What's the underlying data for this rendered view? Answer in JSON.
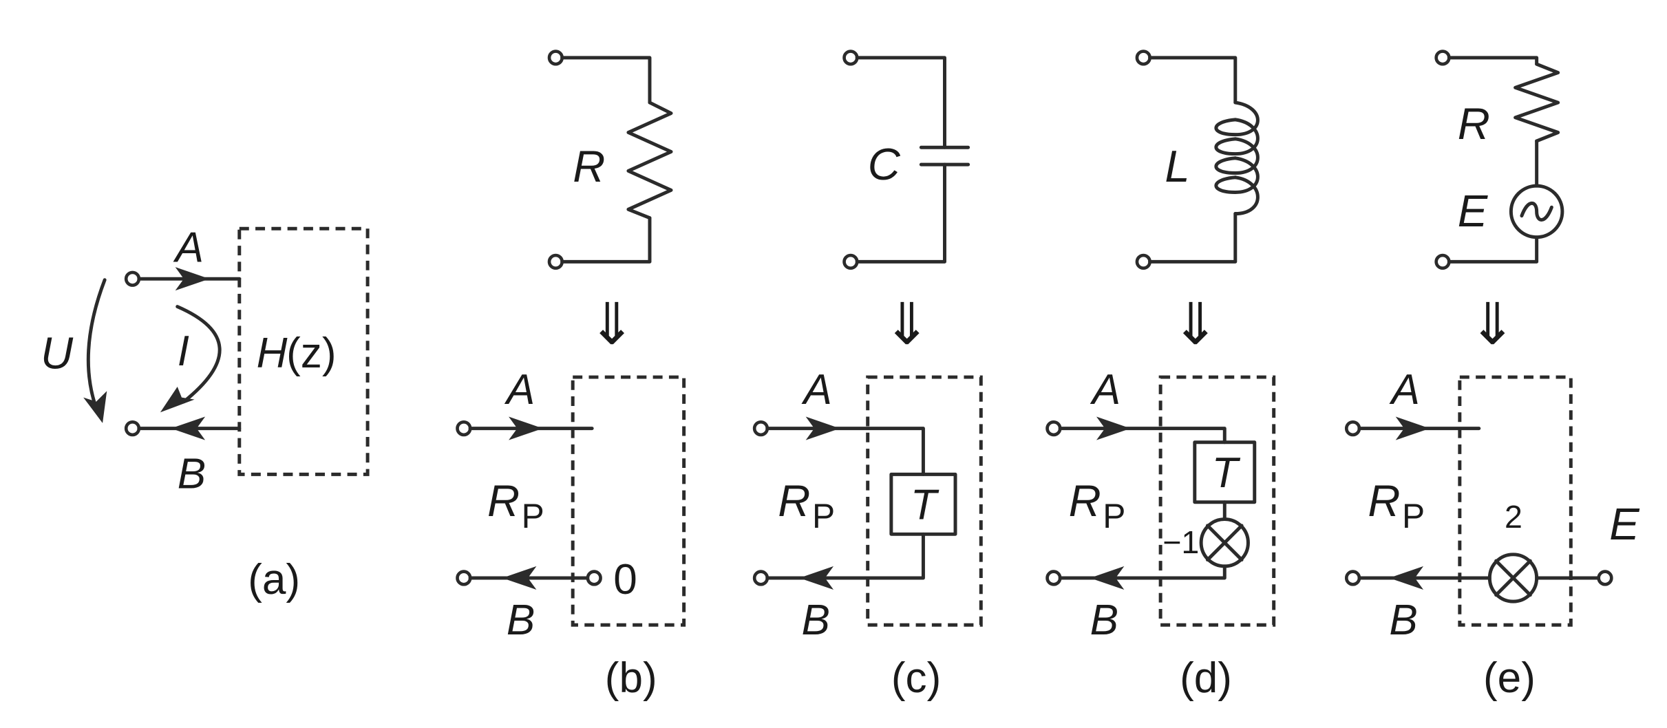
{
  "panels": {
    "a": {
      "caption": "(a)",
      "node_a": "A",
      "node_b": "B",
      "voltage": "U",
      "current": "I",
      "block_h": "H",
      "block_z": "(z)"
    },
    "b": {
      "caption": "(b)",
      "element": "R",
      "node_a": "A",
      "node_b": "B",
      "rp_main": "R",
      "rp_sub": "P",
      "zero": "0"
    },
    "c": {
      "caption": "(c)",
      "element": "C",
      "node_a": "A",
      "node_b": "B",
      "rp_main": "R",
      "rp_sub": "P",
      "delay": "T"
    },
    "d": {
      "caption": "(d)",
      "element": "L",
      "node_a": "A",
      "node_b": "B",
      "rp_main": "R",
      "rp_sub": "P",
      "delay": "T",
      "gain": "−1"
    },
    "e": {
      "caption": "(e)",
      "element_r": "R",
      "element_e": "E",
      "node_a": "A",
      "node_b": "B",
      "rp_main": "R",
      "rp_sub": "P",
      "gain": "2",
      "source_out": "E"
    }
  },
  "arrow_glyph": "⇓"
}
